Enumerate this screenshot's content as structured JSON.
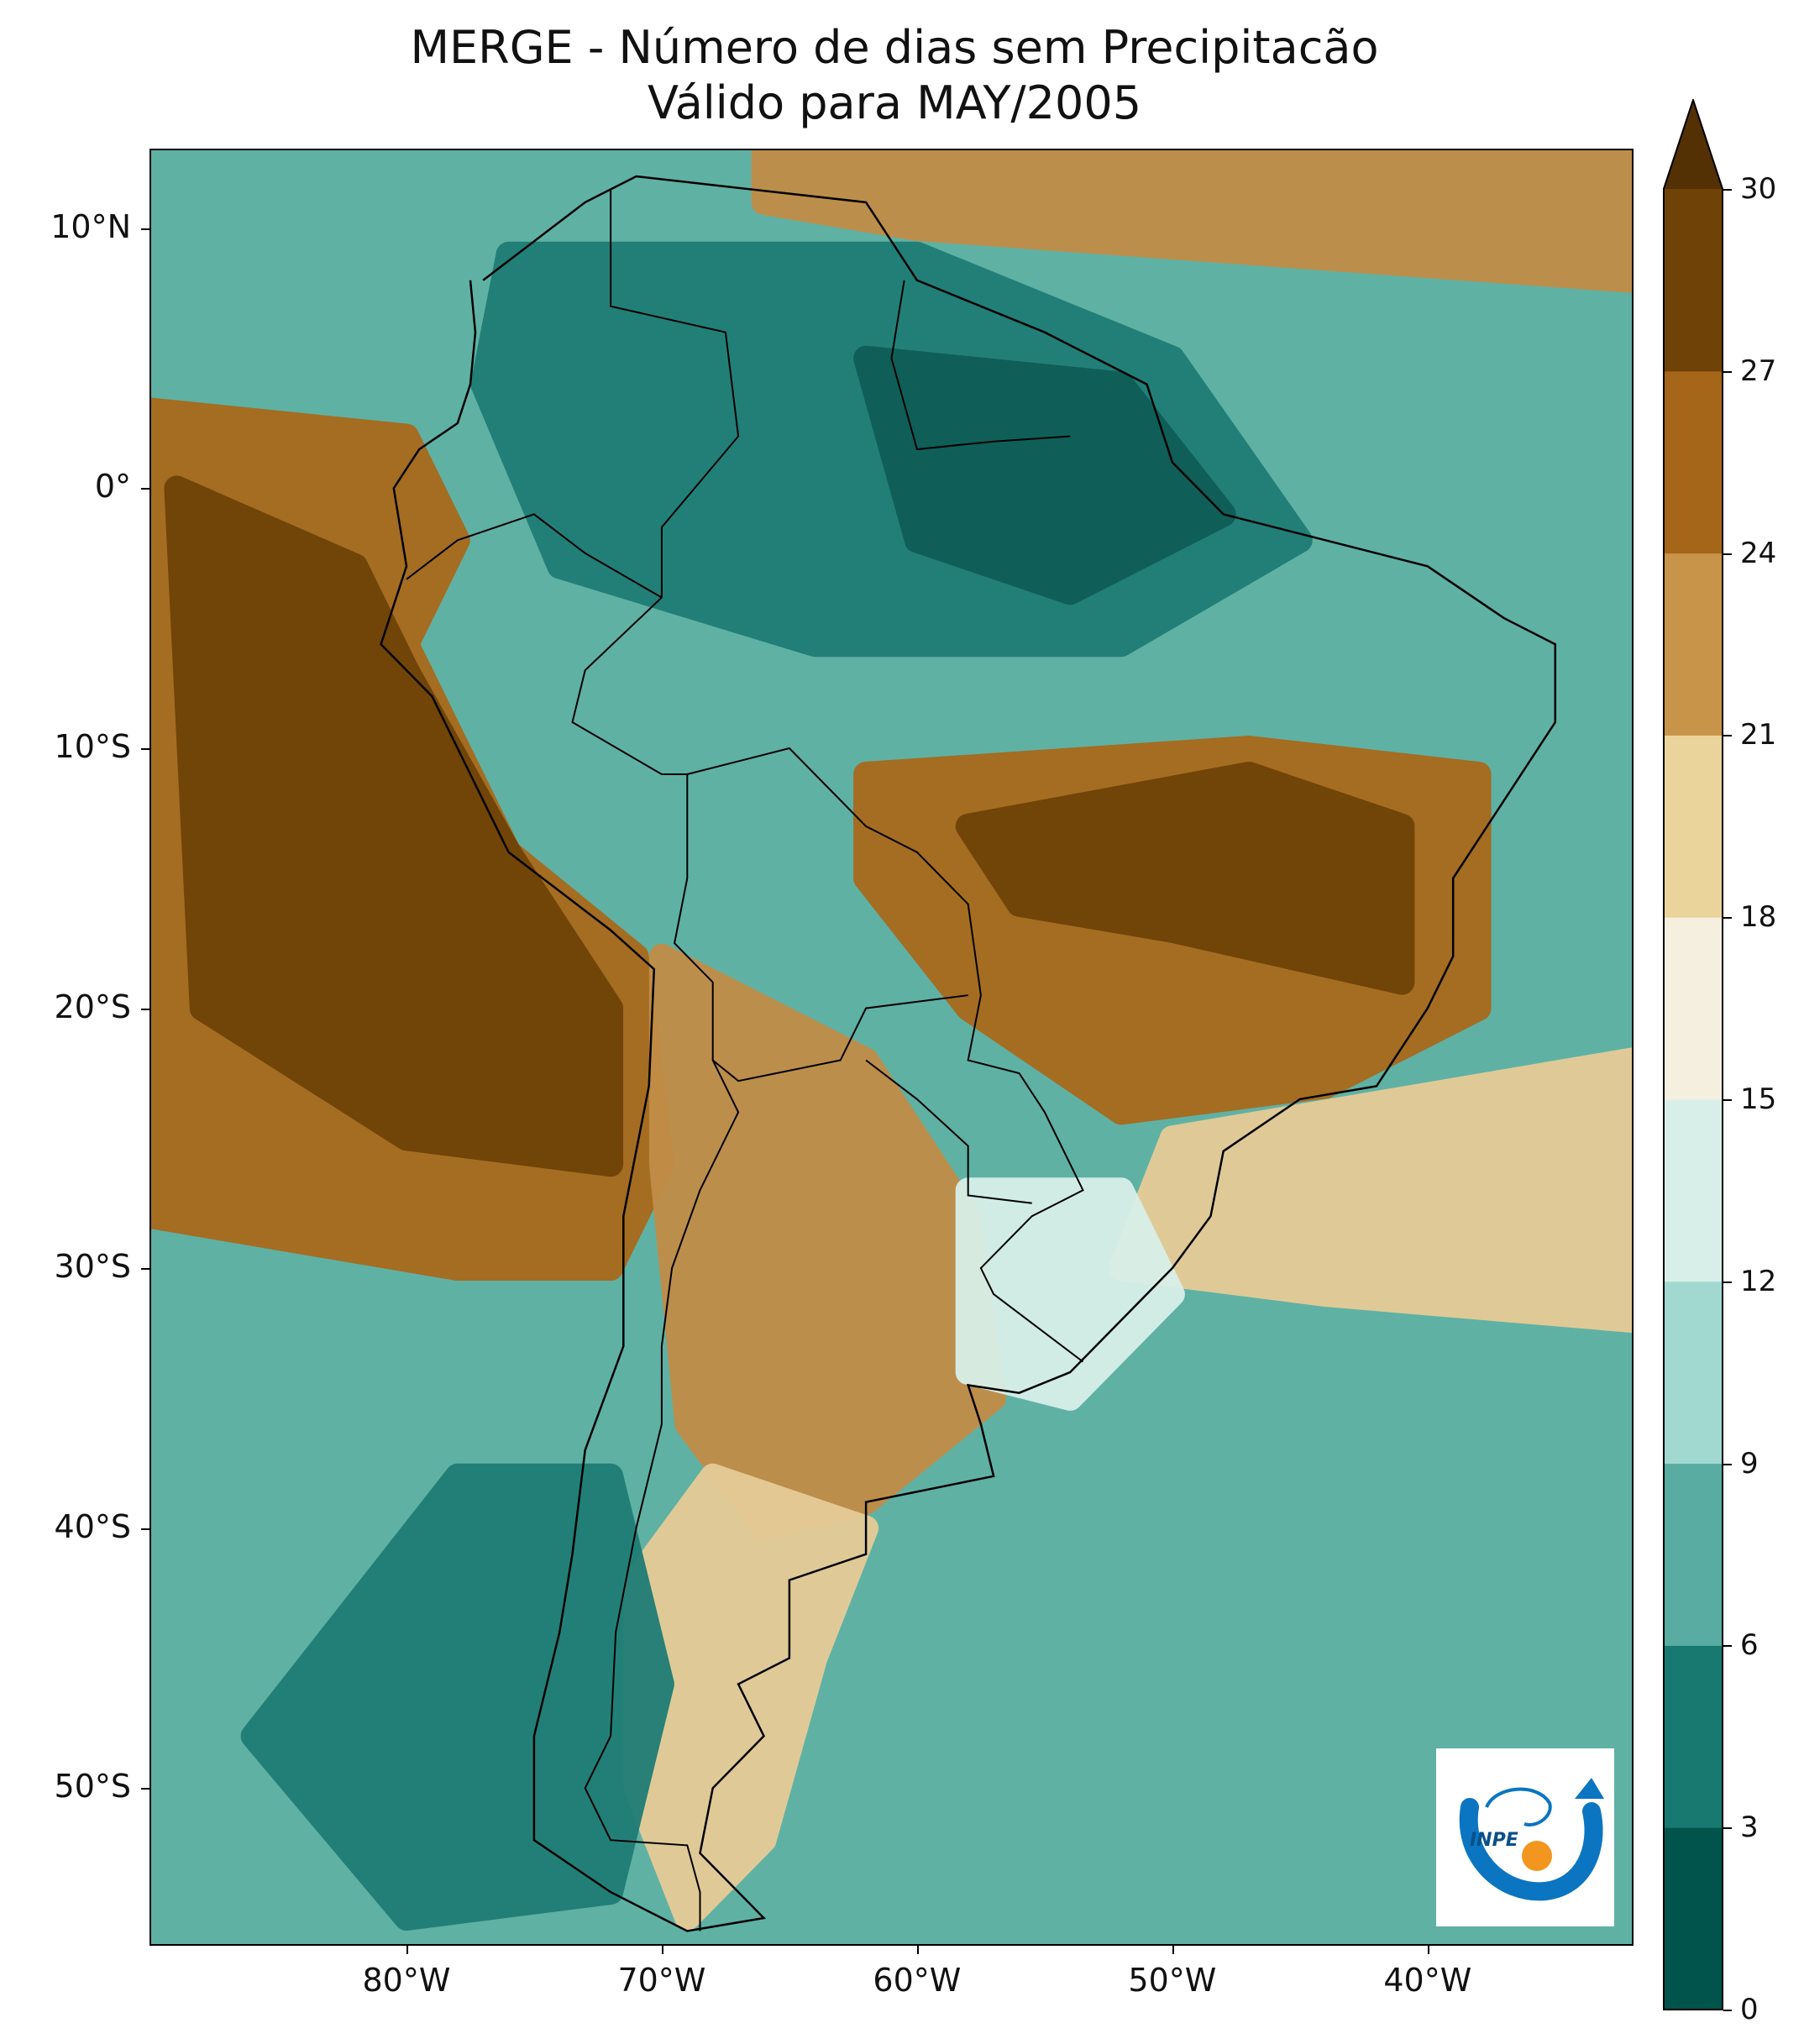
{
  "title": {
    "line1": "MERGE - Número de dias sem Precipitacão",
    "line2": "Válido para MAY/2005"
  },
  "map": {
    "lon_range": [
      -90,
      -32
    ],
    "lat_range": [
      -56,
      13
    ],
    "lat_ticks": [
      {
        "value": 10,
        "label": "10°N"
      },
      {
        "value": 0,
        "label": "0°"
      },
      {
        "value": -10,
        "label": "10°S"
      },
      {
        "value": -20,
        "label": "20°S"
      },
      {
        "value": -30,
        "label": "30°S"
      },
      {
        "value": -40,
        "label": "40°S"
      },
      {
        "value": -50,
        "label": "50°S"
      }
    ],
    "lon_ticks": [
      {
        "value": -80,
        "label": "80°W"
      },
      {
        "value": -70,
        "label": "70°W"
      },
      {
        "value": -60,
        "label": "60°W"
      },
      {
        "value": -50,
        "label": "50°W"
      },
      {
        "value": -40,
        "label": "40°W"
      }
    ],
    "ocean_color": "#5fb1a4",
    "no_data_color": "#ffffff",
    "regions": [
      {
        "name": "pacific-dry-zone",
        "level": 8,
        "color": "#a86a1c",
        "points": [
          [
            -90,
            3
          ],
          [
            -80,
            2
          ],
          [
            -78,
            -2
          ],
          [
            -80,
            -6
          ],
          [
            -76,
            -14
          ],
          [
            -71,
            -18
          ],
          [
            -70,
            -26
          ],
          [
            -72,
            -30
          ],
          [
            -78,
            -30
          ],
          [
            -90,
            -28
          ]
        ]
      },
      {
        "name": "pacific-core",
        "level": 9,
        "color": "#6f4207",
        "points": [
          [
            -89,
            0
          ],
          [
            -82,
            -3
          ],
          [
            -80,
            -7
          ],
          [
            -76,
            -14
          ],
          [
            -72,
            -20
          ],
          [
            -72,
            -26
          ],
          [
            -80,
            -25
          ],
          [
            -88,
            -20
          ]
        ]
      },
      {
        "name": "central-brazil-dry",
        "level": 8,
        "color": "#a86a1c",
        "points": [
          [
            -62,
            -11
          ],
          [
            -47,
            -10
          ],
          [
            -38,
            -11
          ],
          [
            -38,
            -20
          ],
          [
            -44,
            -23
          ],
          [
            -52,
            -24
          ],
          [
            -58,
            -20
          ],
          [
            -62,
            -15
          ]
        ]
      },
      {
        "name": "central-brazil-core",
        "level": 9,
        "color": "#6f4207",
        "points": [
          [
            -58,
            -13
          ],
          [
            -47,
            -11
          ],
          [
            -41,
            -13
          ],
          [
            -41,
            -19
          ],
          [
            -50,
            -17
          ],
          [
            -56,
            -16
          ]
        ]
      },
      {
        "name": "argentina-dry",
        "level": 7,
        "color": "#c28d47",
        "points": [
          [
            -70,
            -18
          ],
          [
            -62,
            -22
          ],
          [
            -58,
            -28
          ],
          [
            -57,
            -35
          ],
          [
            -62,
            -39
          ],
          [
            -66,
            -40
          ],
          [
            -69,
            -36
          ],
          [
            -70,
            -26
          ]
        ]
      },
      {
        "name": "patagonia",
        "level": 6,
        "color": "#e6cc97",
        "points": [
          [
            -68,
            -38
          ],
          [
            -62,
            -40
          ],
          [
            -64,
            -45
          ],
          [
            -66,
            -52
          ],
          [
            -69,
            -55
          ],
          [
            -71,
            -50
          ],
          [
            -71,
            -42
          ]
        ]
      },
      {
        "name": "south-atlantic-band",
        "level": 6,
        "color": "#e6cc97",
        "points": [
          [
            -50,
            -25
          ],
          [
            -32,
            -22
          ],
          [
            -32,
            -32
          ],
          [
            -44,
            -31
          ],
          [
            -52,
            -30
          ]
        ]
      },
      {
        "name": "caribbean-dry",
        "level": 7,
        "color": "#c28d47",
        "points": [
          [
            -66,
            13
          ],
          [
            -32,
            13
          ],
          [
            -32,
            8
          ],
          [
            -46,
            9
          ],
          [
            -60,
            10
          ],
          [
            -66,
            11
          ]
        ]
      },
      {
        "name": "amazon-wet",
        "level": 1,
        "color": "#1f7d75",
        "points": [
          [
            -76,
            9
          ],
          [
            -60,
            9
          ],
          [
            -50,
            5
          ],
          [
            -45,
            -2
          ],
          [
            -52,
            -6
          ],
          [
            -64,
            -6
          ],
          [
            -74,
            -3
          ],
          [
            -77,
            4
          ]
        ]
      },
      {
        "name": "amazon-core",
        "level": 0,
        "color": "#0e5e57",
        "points": [
          [
            -62,
            5
          ],
          [
            -52,
            4
          ],
          [
            -48,
            -1
          ],
          [
            -54,
            -4
          ],
          [
            -60,
            -2
          ]
        ]
      },
      {
        "name": "chile-wet",
        "level": 1,
        "color": "#1f7d75",
        "points": [
          [
            -78,
            -38
          ],
          [
            -72,
            -38
          ],
          [
            -70,
            -46
          ],
          [
            -72,
            -54
          ],
          [
            -80,
            -55
          ],
          [
            -86,
            -48
          ]
        ]
      },
      {
        "name": "uruguay-pale",
        "level": 4,
        "color": "#d8efe9",
        "points": [
          [
            -58,
            -27
          ],
          [
            -52,
            -27
          ],
          [
            -50,
            -31
          ],
          [
            -54,
            -35
          ],
          [
            -58,
            -34
          ]
        ]
      }
    ],
    "coastline": [
      [
        -77,
        8
      ],
      [
        -73,
        11
      ],
      [
        -71,
        12
      ],
      [
        -62,
        11
      ],
      [
        -60,
        8
      ],
      [
        -55,
        6
      ],
      [
        -51,
        4
      ],
      [
        -50,
        1
      ],
      [
        -48,
        -1
      ],
      [
        -44,
        -2
      ],
      [
        -40,
        -3
      ],
      [
        -37,
        -5
      ],
      [
        -35,
        -6
      ],
      [
        -35,
        -9
      ],
      [
        -37,
        -12
      ],
      [
        -39,
        -15
      ],
      [
        -39,
        -18
      ],
      [
        -40,
        -20
      ],
      [
        -42,
        -23
      ],
      [
        -45,
        -23.5
      ],
      [
        -48,
        -25.5
      ],
      [
        -48.5,
        -28
      ],
      [
        -50,
        -30
      ],
      [
        -52,
        -32
      ],
      [
        -54,
        -34
      ],
      [
        -56,
        -34.8
      ],
      [
        -58,
        -34.5
      ],
      [
        -57.5,
        -36
      ],
      [
        -57,
        -38
      ],
      [
        -62,
        -39
      ],
      [
        -62,
        -41
      ],
      [
        -65,
        -42
      ],
      [
        -65,
        -45
      ],
      [
        -67,
        -46
      ],
      [
        -66,
        -48
      ],
      [
        -68,
        -50
      ],
      [
        -68.5,
        -52.5
      ],
      [
        -66,
        -55
      ],
      [
        -69,
        -55.5
      ],
      [
        -72,
        -54
      ],
      [
        -75,
        -52
      ],
      [
        -75,
        -48
      ],
      [
        -74,
        -44
      ],
      [
        -73.5,
        -41
      ],
      [
        -73,
        -37
      ],
      [
        -71.5,
        -33
      ],
      [
        -71.5,
        -28
      ],
      [
        -70.5,
        -23
      ],
      [
        -70.3,
        -18.5
      ],
      [
        -72,
        -17
      ],
      [
        -76,
        -14
      ],
      [
        -77,
        -12
      ],
      [
        -79,
        -8
      ],
      [
        -81,
        -6
      ],
      [
        -80,
        -3
      ],
      [
        -80.5,
        0
      ],
      [
        -79.5,
        1.5
      ],
      [
        -78,
        2.5
      ],
      [
        -77.5,
        4
      ],
      [
        -77.3,
        6
      ],
      [
        -77.5,
        8
      ]
    ],
    "borders": [
      [
        [
          -72,
          11.5
        ],
        [
          -72,
          7
        ],
        [
          -67.5,
          6
        ],
        [
          -67,
          2
        ],
        [
          -70,
          -1.5
        ],
        [
          -70,
          -4.2
        ]
      ],
      [
        [
          -60.5,
          8
        ],
        [
          -61,
          5
        ],
        [
          -60,
          1.5
        ],
        [
          -57,
          1.8
        ],
        [
          -54,
          2
        ]
      ],
      [
        [
          -70,
          -4.2
        ],
        [
          -73,
          -7
        ],
        [
          -73.5,
          -9
        ],
        [
          -70,
          -11
        ],
        [
          -69,
          -11
        ],
        [
          -65,
          -10
        ],
        [
          -62,
          -13
        ],
        [
          -60,
          -14
        ],
        [
          -58,
          -16
        ],
        [
          -57.5,
          -19.5
        ],
        [
          -58,
          -22
        ],
        [
          -56,
          -22.5
        ],
        [
          -55,
          -24
        ],
        [
          -54,
          -26
        ],
        [
          -53.5,
          -27
        ],
        [
          -55.5,
          -28
        ],
        [
          -57.5,
          -30
        ],
        [
          -57,
          -31
        ],
        [
          -53.5,
          -33.6
        ]
      ],
      [
        [
          -80,
          -3.5
        ],
        [
          -78,
          -2
        ],
        [
          -75,
          -1
        ],
        [
          -73,
          -2.5
        ],
        [
          -70,
          -4.2
        ]
      ],
      [
        [
          -69,
          -11
        ],
        [
          -69,
          -15
        ],
        [
          -69.5,
          -17.5
        ],
        [
          -68,
          -19
        ],
        [
          -68,
          -22
        ],
        [
          -67,
          -22.8
        ],
        [
          -63,
          -22
        ],
        [
          -62,
          -20
        ],
        [
          -58,
          -19.5
        ]
      ],
      [
        [
          -62,
          -22
        ],
        [
          -60,
          -23.5
        ],
        [
          -58,
          -25.3
        ],
        [
          -58,
          -27.2
        ],
        [
          -55.5,
          -27.5
        ]
      ],
      [
        [
          -68,
          -22
        ],
        [
          -67,
          -24
        ],
        [
          -68.5,
          -27
        ],
        [
          -69.6,
          -30
        ],
        [
          -70,
          -33
        ],
        [
          -70,
          -36
        ],
        [
          -71,
          -40
        ],
        [
          -71.8,
          -44
        ],
        [
          -72,
          -48
        ],
        [
          -73,
          -50
        ],
        [
          -72,
          -52
        ],
        [
          -69,
          -52.2
        ],
        [
          -68.5,
          -54
        ],
        [
          -68.5,
          -55.5
        ]
      ]
    ]
  },
  "colorbar": {
    "extend": "max",
    "levels": [
      0,
      3,
      6,
      9,
      12,
      15,
      18,
      21,
      24,
      27,
      30
    ],
    "labels": [
      "0",
      "3",
      "6",
      "9",
      "12",
      "15",
      "18",
      "21",
      "24",
      "27",
      "30"
    ],
    "colors": [
      "#01544b",
      "#17796f",
      "#58aca1",
      "#a1d9d1",
      "#d8efe9",
      "#f5efe0",
      "#ebd49b",
      "#c8944a",
      "#a5661a",
      "#6f4207"
    ],
    "extend_color": "#543005"
  },
  "logo": {
    "text": "INPE",
    "ring_color": "#0b75c1",
    "dot_color": "#f2961f"
  }
}
